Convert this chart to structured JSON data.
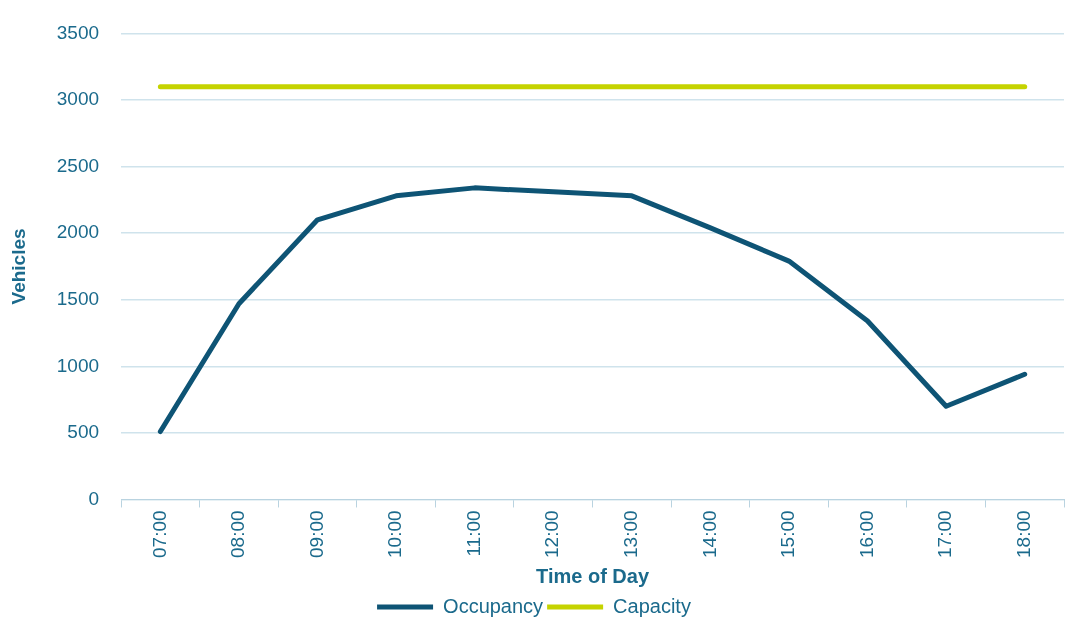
{
  "chart_data": {
    "type": "line",
    "xlabel": "Time of Day",
    "ylabel": "Vehicles",
    "categories": [
      "07:00",
      "08:00",
      "09:00",
      "10:00",
      "11:00",
      "12:00",
      "13:00",
      "14:00",
      "15:00",
      "16:00",
      "17:00",
      "18:00"
    ],
    "series": [
      {
        "name": "Occupancy",
        "color": "#0e5475",
        "values": [
          510,
          1470,
          2100,
          2280,
          2340,
          2310,
          2280,
          2040,
          1790,
          1340,
          700,
          940
        ]
      },
      {
        "name": "Capacity",
        "color": "#c5d300",
        "values": [
          3100,
          3100,
          3100,
          3100,
          3100,
          3100,
          3100,
          3100,
          3100,
          3100,
          3100,
          3100
        ]
      }
    ],
    "ylim": [
      0,
      3500
    ],
    "yticks": [
      0,
      500,
      1000,
      1500,
      2000,
      2500,
      3000,
      3500
    ],
    "grid": "y",
    "legend": "bottom",
    "marker": "none",
    "line_style": "solid"
  }
}
